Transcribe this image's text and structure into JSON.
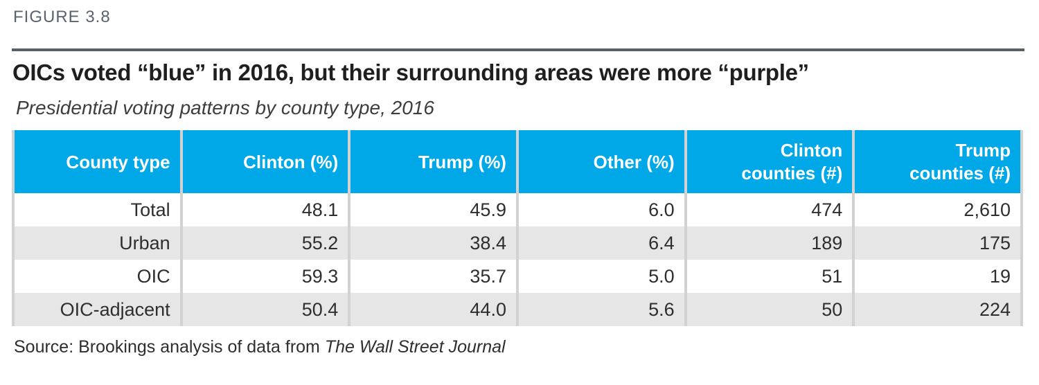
{
  "figure": {
    "label": "FIGURE 3.8",
    "title": "OICs voted “blue” in 2016, but their surrounding areas were more “purple”",
    "subtitle": "Presidential voting patterns by county type, 2016",
    "source_prefix": "Source: Brookings analysis of data from ",
    "source_publication": "The Wall Street Journal"
  },
  "table": {
    "columns": [
      "County type",
      "Clinton (%)",
      "Trump (%)",
      "Other (%)",
      "Clinton\ncounties (#)",
      "Trump\ncounties (#)"
    ],
    "rows": [
      [
        "Total",
        "48.1",
        "45.9",
        "6.0",
        "474",
        "2,610"
      ],
      [
        "Urban",
        "55.2",
        "38.4",
        "6.4",
        "189",
        "175"
      ],
      [
        "OIC",
        "59.3",
        "35.7",
        "5.0",
        "51",
        "19"
      ],
      [
        "OIC-adjacent",
        "50.4",
        "44.0",
        "5.6",
        "50",
        "224"
      ]
    ]
  },
  "chart_data": {
    "type": "table",
    "title": "OICs voted “blue” in 2016, but their surrounding areas were more “purple”",
    "subtitle": "Presidential voting patterns by county type, 2016",
    "columns": [
      "County type",
      "Clinton (%)",
      "Trump (%)",
      "Other (%)",
      "Clinton counties (#)",
      "Trump counties (#)"
    ],
    "rows": [
      {
        "county_type": "Total",
        "clinton_pct": 48.1,
        "trump_pct": 45.9,
        "other_pct": 6.0,
        "clinton_counties": 474,
        "trump_counties": 2610
      },
      {
        "county_type": "Urban",
        "clinton_pct": 55.2,
        "trump_pct": 38.4,
        "other_pct": 6.4,
        "clinton_counties": 189,
        "trump_counties": 175
      },
      {
        "county_type": "OIC",
        "clinton_pct": 59.3,
        "trump_pct": 35.7,
        "other_pct": 5.0,
        "clinton_counties": 51,
        "trump_counties": 19
      },
      {
        "county_type": "OIC-adjacent",
        "clinton_pct": 50.4,
        "trump_pct": 44.0,
        "other_pct": 5.6,
        "clinton_counties": 50,
        "trump_counties": 224
      }
    ],
    "source": "Source: Brookings analysis of data from The Wall Street Journal"
  },
  "colors": {
    "header_background": "#00A8E8",
    "header_text": "#FFFFFF",
    "row_stripe": "#E6E6E6",
    "column_separator": "#D2D2D2",
    "rule": "#5A6166",
    "figure_label": "#5A636C",
    "title_text": "#1F1F1F",
    "body_text": "#2E2E2E"
  }
}
